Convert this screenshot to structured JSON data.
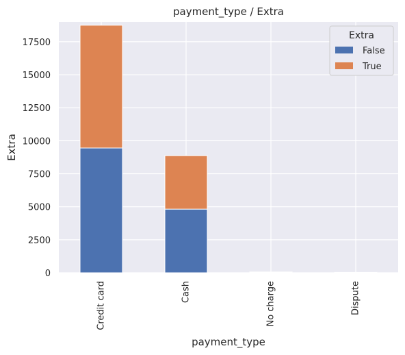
{
  "chart_data": {
    "type": "bar",
    "stacked": true,
    "title": "payment_type / Extra",
    "xlabel": "payment_type",
    "ylabel": "Extra",
    "categories": [
      "Credit card",
      "Cash",
      "No charge",
      "Dispute"
    ],
    "series": [
      {
        "name": "False",
        "color": "#4c72b0",
        "values": [
          9450,
          4820,
          40,
          20
        ]
      },
      {
        "name": "True",
        "color": "#dd8452",
        "values": [
          9300,
          4050,
          20,
          10
        ]
      }
    ],
    "ylim": [
      0,
      19000
    ],
    "yticks": [
      0,
      2500,
      5000,
      7500,
      10000,
      12500,
      15000,
      17500
    ],
    "grid": true,
    "legend": {
      "title": "Extra",
      "position": "top-right"
    },
    "background": "#eaeaf2",
    "gridColor": "#ffffff"
  }
}
